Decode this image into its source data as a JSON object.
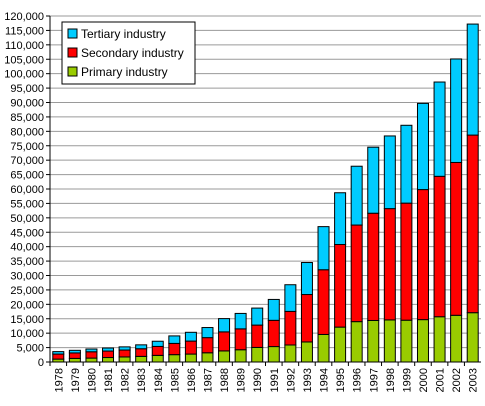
{
  "chart_data": {
    "type": "bar",
    "stacked": true,
    "title": "",
    "xlabel": "",
    "ylabel": "",
    "ylim": [
      0,
      120000
    ],
    "y_tick_step": 5000,
    "y_tick_labels": [
      "0",
      "5,000",
      "10,000",
      "15,000",
      "20,000",
      "25,000",
      "30,000",
      "35,000",
      "40,000",
      "45,000",
      "50,000",
      "55,000",
      "60,000",
      "65,000",
      "70,000",
      "75,000",
      "80,000",
      "85,000",
      "90,000",
      "95,000",
      "100,000",
      "105,000",
      "110,000",
      "115,000",
      "120,000"
    ],
    "grid": true,
    "legend_position": "top-left",
    "categories": [
      "1978",
      "1979",
      "1980",
      "1981",
      "1982",
      "1983",
      "1984",
      "1985",
      "1986",
      "1987",
      "1988",
      "1989",
      "1990",
      "1991",
      "1992",
      "1993",
      "1994",
      "1995",
      "1996",
      "1997",
      "1998",
      "1999",
      "2000",
      "2001",
      "2002",
      "2003"
    ],
    "series": [
      {
        "name": "Primary industry",
        "color": "#99cc00",
        "values": [
          1000,
          1250,
          1350,
          1550,
          1750,
          1950,
          2300,
          2550,
          2750,
          3200,
          3850,
          4250,
          5050,
          5350,
          5900,
          6950,
          9550,
          12100,
          14000,
          14400,
          14600,
          14500,
          14700,
          15700,
          16200,
          17100
        ]
      },
      {
        "name": "Secondary industry",
        "color": "#ff0000",
        "values": [
          1750,
          1900,
          2200,
          2250,
          2400,
          2650,
          3100,
          3900,
          4500,
          5250,
          6600,
          7250,
          7750,
          9100,
          11650,
          16450,
          22450,
          28650,
          33500,
          37200,
          38600,
          40600,
          45100,
          48700,
          53000,
          61600
        ]
      },
      {
        "name": "Tertiary industry",
        "color": "#00ccff",
        "values": [
          850,
          900,
          950,
          1050,
          1100,
          1350,
          1800,
          2600,
          3050,
          3500,
          4600,
          5350,
          5900,
          7250,
          9250,
          11100,
          14950,
          17950,
          20400,
          22900,
          25200,
          27000,
          29900,
          32700,
          35900,
          38500
        ]
      }
    ],
    "legend": [
      "Tertiary industry",
      "Secondary industry",
      "Primary industry"
    ]
  }
}
